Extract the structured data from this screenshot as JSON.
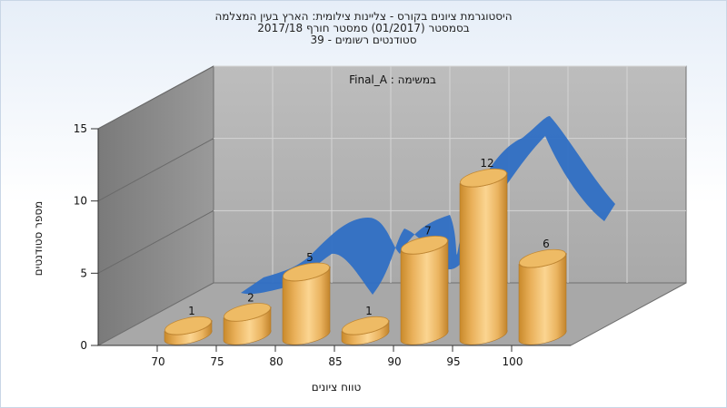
{
  "chart_data": {
    "type": "bar",
    "title_lines": [
      "היסטוגרמת ציונים בקורס - צליינות צילומית: הארץ בעין המצלמה",
      "בסמסטר  (01/2017)  סמסטר חורף  2017/18",
      "סטודנטים רשומים - 39"
    ],
    "inner_label": "Final_A : במשימה",
    "xlabel": "טווח ציונים",
    "ylabel": "מספר סטודנטים",
    "categories": [
      "70",
      "75",
      "80",
      "85",
      "90",
      "95",
      "100"
    ],
    "values": [
      1,
      2,
      5,
      1,
      7,
      12,
      6
    ],
    "data_labels": [
      "1",
      "2",
      "5",
      "1",
      "7",
      "12",
      "6"
    ],
    "yticks": [
      "0",
      "5",
      "10",
      "15"
    ],
    "ylim": [
      0,
      15
    ],
    "legend": "none",
    "grid": true,
    "colors": {
      "bar_light": "#f7c878",
      "bar_dark": "#d0902f",
      "bar_top": "#eebb65",
      "ribbon": "#2f6fc4",
      "back_wall": "#b3b3b3",
      "side_wall": "#8c8c8c",
      "floor": "#a3a3a3",
      "background": "#ffffff",
      "frame": "#dbe8f5"
    }
  }
}
